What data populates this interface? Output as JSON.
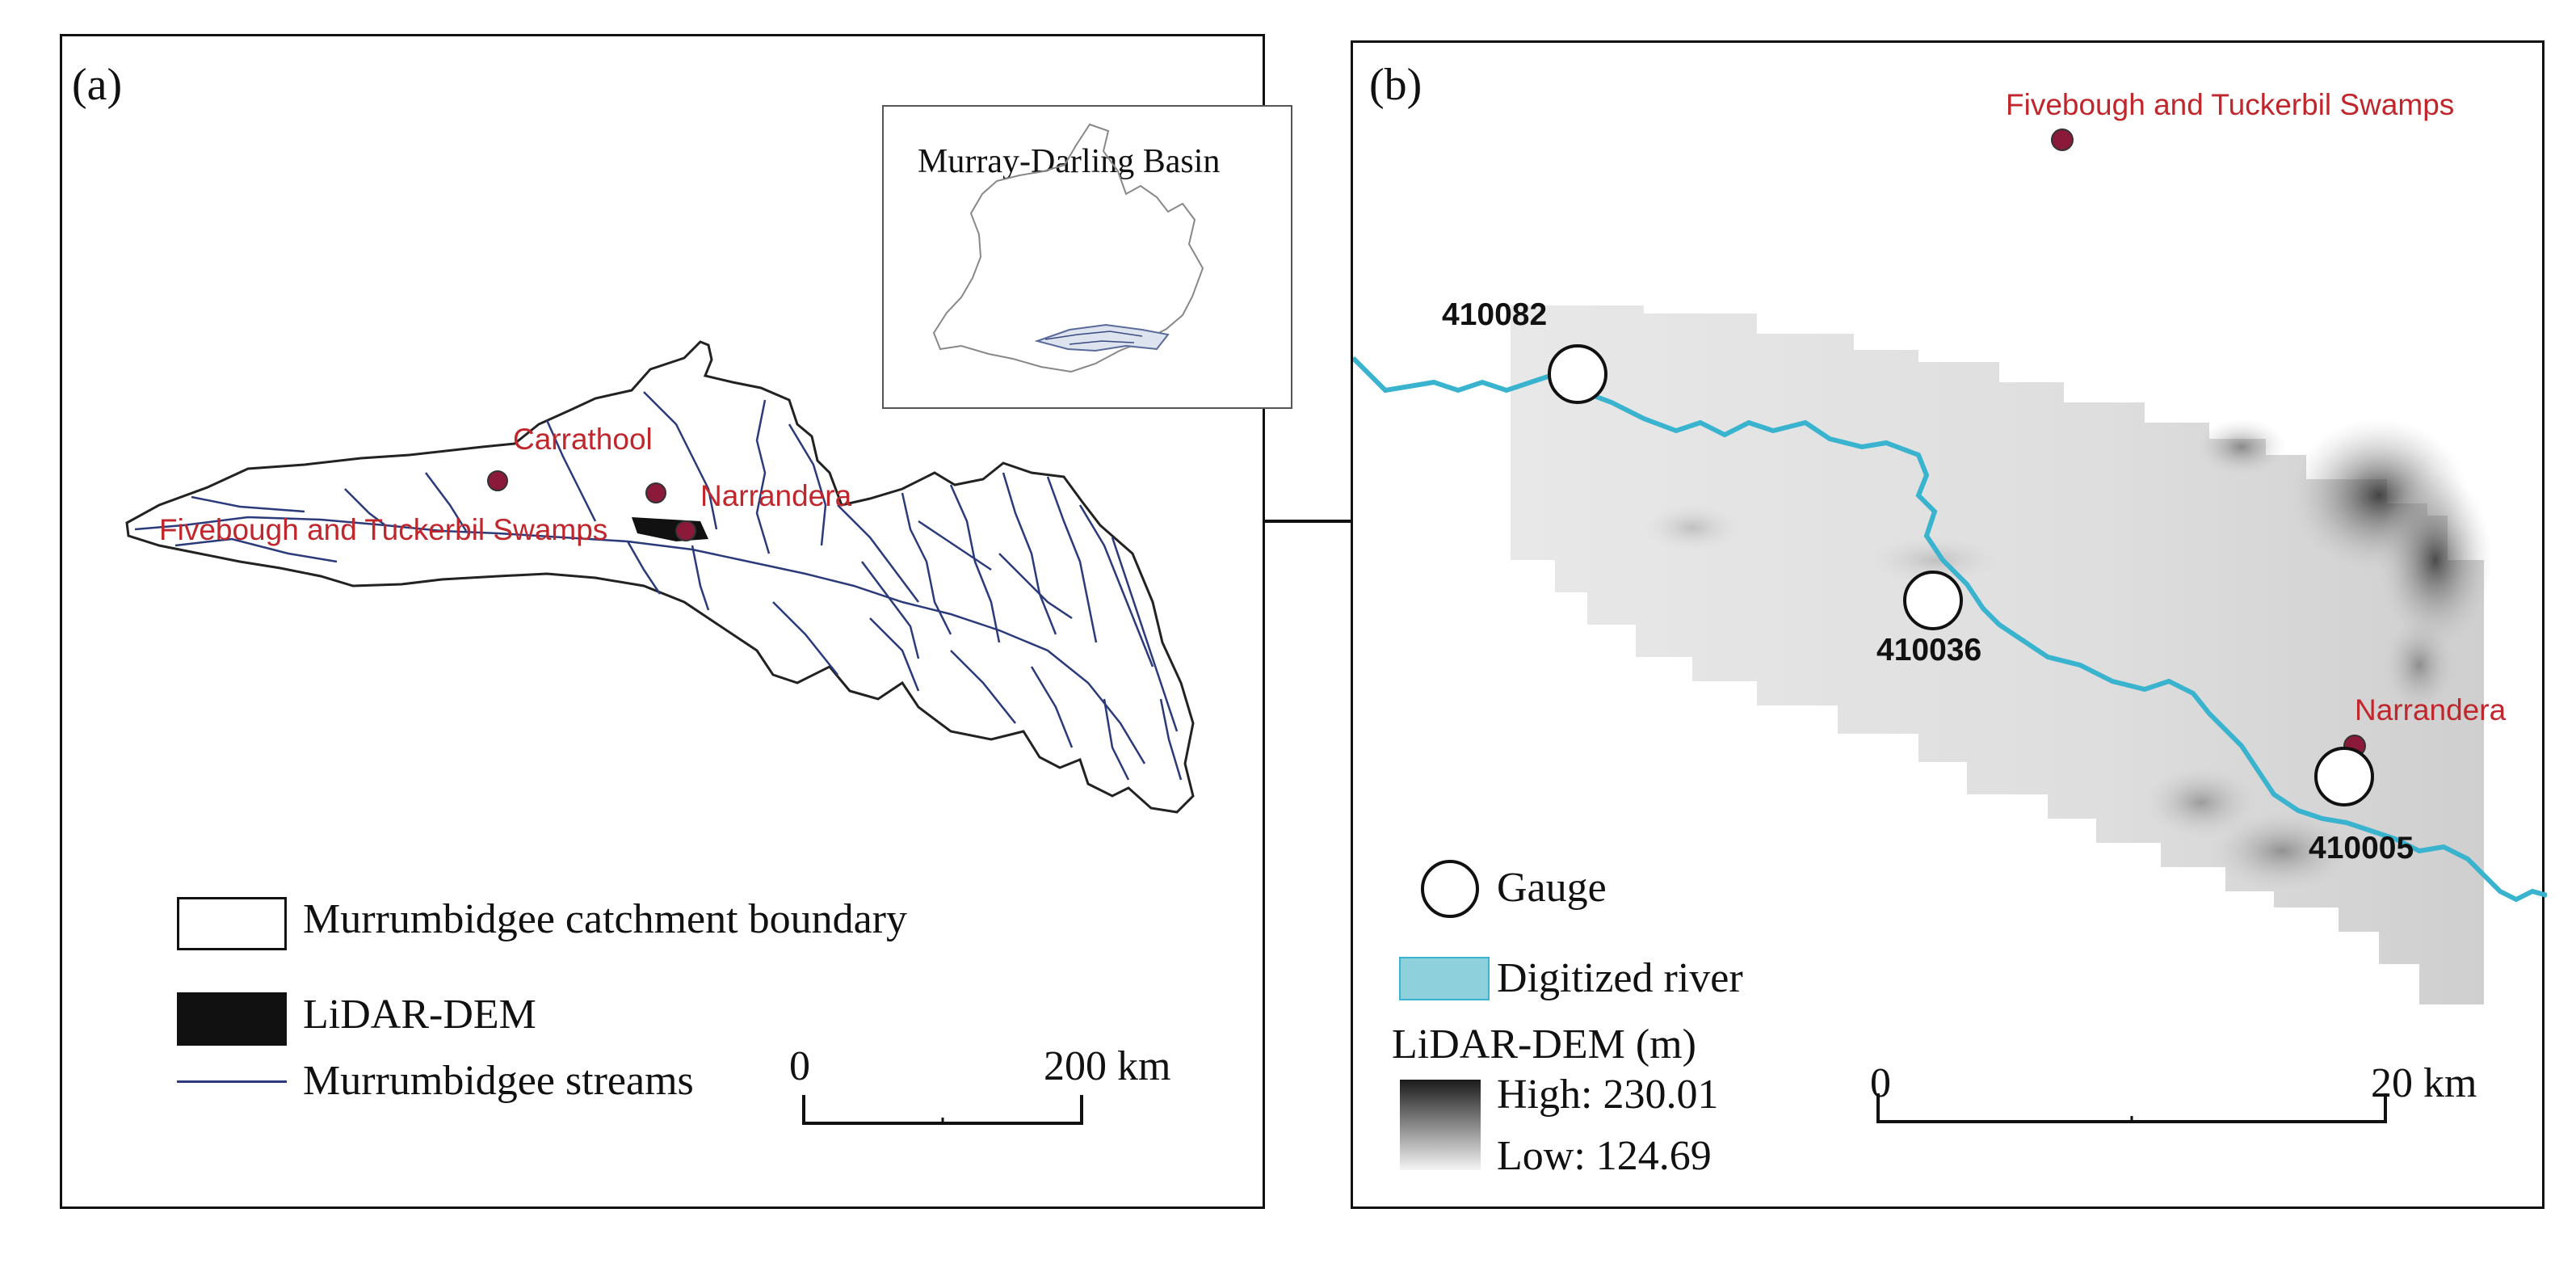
{
  "panel_a": {
    "label": "(a)",
    "inset_title": "Murray-Darling Basin",
    "places": {
      "carrathool": "Carrathool",
      "narrandera": "Narrandera",
      "swamps": "Fivebough and Tuckerbil Swamps"
    },
    "legend": [
      {
        "label": "Murrumbidgee catchment boundary",
        "symbol": "white-box"
      },
      {
        "label": "LiDAR-DEM",
        "symbol": "black-box"
      },
      {
        "label": "Murrumbidgee streams",
        "symbol": "navy-line"
      }
    ],
    "scale": {
      "start": "0",
      "end": "200 km"
    }
  },
  "panel_b": {
    "label": "(b)",
    "places": {
      "swamps": "Fivebough and Tuckerbil Swamps",
      "narrandera": "Narrandera"
    },
    "gauges": [
      "410082",
      "410036",
      "410005"
    ],
    "legend": {
      "gauge": "Gauge",
      "river": "Digitized river",
      "dem_title": "LiDAR-DEM (m)",
      "high": "High: 230.01",
      "low": "Low: 124.69"
    },
    "scale": {
      "start": "0",
      "end": "20 km"
    }
  },
  "colors": {
    "place_text": "#c0272d",
    "place_dot": "#8b1a3a",
    "river": "#3ab3cf",
    "streams": "#2b3a7a",
    "legend_river_fill": "#8fd0dd"
  }
}
